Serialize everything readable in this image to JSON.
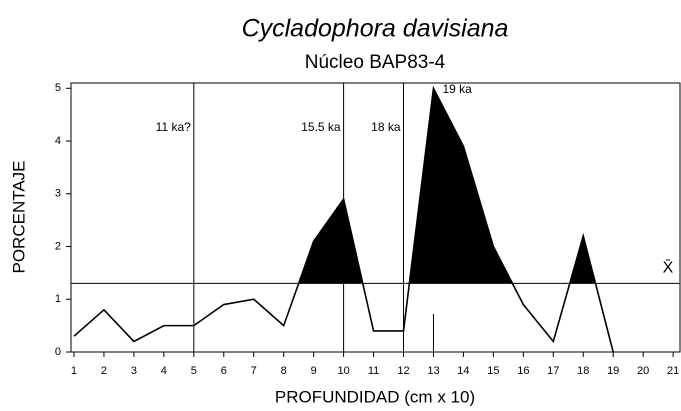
{
  "chart_data": {
    "type": "line",
    "title": "Cycladophora davisiana",
    "subtitle": "Núcleo BAP83-4",
    "y_label": "PORCENTAJE",
    "x_label": "PROFUNDIDAD (cm x 10)",
    "x": [
      1,
      2,
      3,
      4,
      5,
      6,
      7,
      8,
      9,
      10,
      11,
      12,
      13,
      14,
      15,
      16,
      17,
      18,
      19
    ],
    "series": [
      {
        "color": "#000000",
        "values": [
          0.3,
          0.8,
          0.2,
          0.5,
          0.5,
          0.9,
          1.0,
          0.5,
          2.1,
          2.9,
          0.4,
          0.4,
          5.0,
          3.9,
          2.0,
          0.9,
          0.2,
          2.2,
          0
        ]
      }
    ],
    "mean": 1.3,
    "mean_label": "X̄",
    "reference_lines": [
      5,
      10,
      12
    ],
    "annotations": [
      {
        "text": "11 ka?",
        "x": 5
      },
      {
        "text": "15.5 ka",
        "x": 10
      },
      {
        "text": "18 ka",
        "x": 12
      },
      {
        "text": "19 ka",
        "x": 13
      }
    ],
    "xlim": [
      0.9,
      21.23
    ],
    "ylim": [
      0,
      5.1
    ],
    "xticks": [
      1,
      2,
      3,
      4,
      5,
      6,
      7,
      8,
      9,
      10,
      11,
      12,
      13,
      14,
      15,
      16,
      17,
      18,
      19,
      20,
      21
    ],
    "yticks": [
      0,
      1,
      2,
      3,
      4,
      5
    ]
  }
}
